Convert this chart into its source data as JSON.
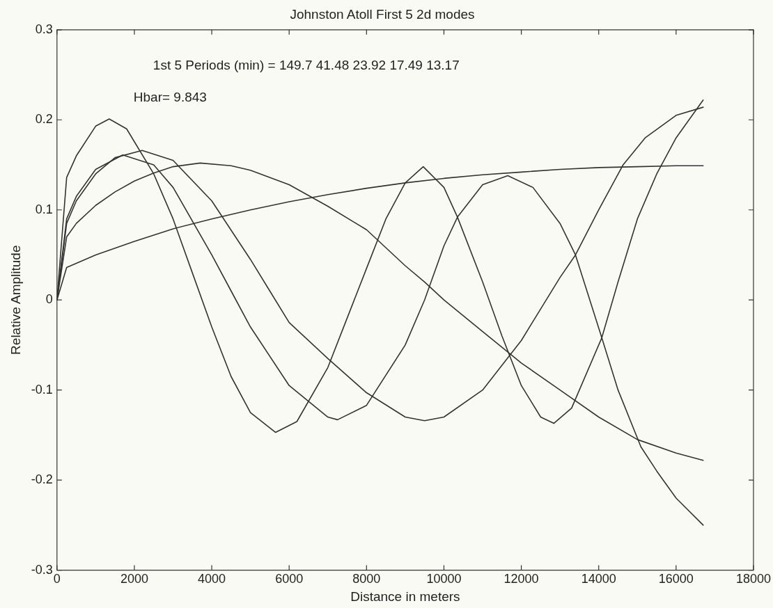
{
  "chart_data": {
    "type": "line",
    "title": "Johnston Atoll First 5 2d modes",
    "xlabel": "Distance in meters",
    "ylabel": "Relative Amplitude",
    "annotations": [
      "1st 5 Periods (min) = 149.7 41.48 23.92 17.49 13.17",
      "Hbar= 9.843"
    ],
    "xlim": [
      0,
      18000
    ],
    "xticks": [
      0,
      2000,
      4000,
      6000,
      8000,
      10000,
      12000,
      14000,
      16000,
      18000
    ],
    "ylim": [
      -0.3,
      0.3
    ],
    "yticks": [
      -0.3,
      -0.2,
      -0.1,
      0,
      0.1,
      0.2,
      0.3
    ],
    "grid": false,
    "legend": false,
    "series": [
      {
        "color": "#333333",
        "x": [
          0,
          250,
          1000,
          2000,
          3000,
          4000,
          5000,
          6000,
          7000,
          8000,
          9000,
          10000,
          11000,
          12000,
          13000,
          14000,
          15000,
          16000,
          16700
        ],
        "values": [
          0,
          0.036,
          0.05,
          0.065,
          0.079,
          0.09,
          0.1,
          0.109,
          0.117,
          0.124,
          0.13,
          0.135,
          0.139,
          0.142,
          0.145,
          0.147,
          0.148,
          0.149,
          0.149
        ]
      },
      {
        "color": "#333333",
        "x": [
          0,
          250,
          500,
          1000,
          1500,
          2000,
          2500,
          3000,
          3700,
          4500,
          5000,
          6000,
          7000,
          8000,
          9000,
          9500,
          10000,
          11000,
          12000,
          13000,
          14000,
          15000,
          16000,
          16700
        ],
        "values": [
          0,
          0.07,
          0.085,
          0.105,
          0.12,
          0.132,
          0.141,
          0.148,
          0.152,
          0.149,
          0.144,
          0.128,
          0.104,
          0.078,
          0.038,
          0.02,
          0,
          -0.035,
          -0.07,
          -0.1,
          -0.13,
          -0.155,
          -0.17,
          -0.178
        ]
      },
      {
        "color": "#333333",
        "x": [
          0,
          250,
          500,
          1000,
          1500,
          2200,
          3000,
          4000,
          5000,
          5500,
          6000,
          7000,
          8000,
          9000,
          9500,
          10000,
          11000,
          12000,
          12500,
          13000,
          13400,
          14000,
          14630,
          15200,
          16000,
          16700
        ],
        "values": [
          0,
          0.085,
          0.11,
          0.14,
          0.158,
          0.166,
          0.155,
          0.11,
          0.045,
          0.01,
          -0.025,
          -0.065,
          -0.103,
          -0.13,
          -0.134,
          -0.13,
          -0.1,
          -0.045,
          -0.01,
          0.025,
          0.05,
          0.1,
          0.15,
          0.18,
          0.205,
          0.214
        ]
      },
      {
        "color": "#333333",
        "x": [
          0,
          250,
          500,
          1000,
          1700,
          2500,
          3000,
          4000,
          4500,
          5000,
          6000,
          7000,
          7250,
          8000,
          9000,
          9500,
          10000,
          10350,
          11000,
          11650,
          12300,
          13000,
          13400,
          14080,
          14500,
          15090,
          15500,
          16000,
          16700
        ],
        "values": [
          0,
          0.09,
          0.115,
          0.145,
          0.161,
          0.15,
          0.125,
          0.05,
          0.01,
          -0.03,
          -0.095,
          -0.13,
          -0.133,
          -0.117,
          -0.05,
          0,
          0.06,
          0.092,
          0.128,
          0.138,
          0.125,
          0.085,
          0.05,
          -0.042,
          -0.1,
          -0.163,
          -0.19,
          -0.22,
          -0.25
        ]
      },
      {
        "color": "#333333",
        "x": [
          0,
          250,
          500,
          1000,
          1350,
          1800,
          2500,
          3000,
          3500,
          4000,
          4500,
          5000,
          5650,
          6200,
          7000,
          7500,
          8000,
          8500,
          9000,
          9465,
          10000,
          10350,
          11000,
          11500,
          12000,
          12500,
          12840,
          13300,
          14080,
          14500,
          15000,
          15500,
          16000,
          16700
        ],
        "values": [
          0,
          0.136,
          0.16,
          0.193,
          0.201,
          0.19,
          0.14,
          0.09,
          0.03,
          -0.03,
          -0.085,
          -0.125,
          -0.147,
          -0.135,
          -0.075,
          -0.02,
          0.035,
          0.09,
          0.13,
          0.148,
          0.125,
          0.092,
          0.02,
          -0.04,
          -0.095,
          -0.13,
          -0.137,
          -0.12,
          -0.042,
          0.02,
          0.09,
          0.14,
          0.18,
          0.222
        ]
      }
    ]
  }
}
